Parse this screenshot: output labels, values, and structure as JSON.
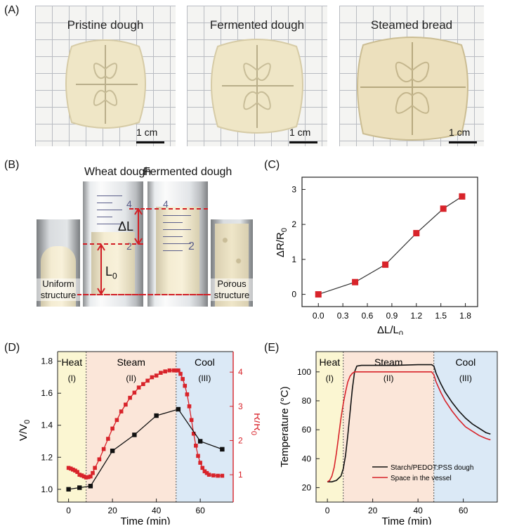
{
  "panelA": {
    "label": "(A)",
    "photos": [
      {
        "title": "Pristine dough",
        "scale": "1 cm"
      },
      {
        "title": "Fermented dough",
        "scale": "1 cm"
      },
      {
        "title": "Steamed bread",
        "scale": "1 cm"
      }
    ]
  },
  "panelB": {
    "label": "(B)",
    "wheat_title": "Wheat dough",
    "fermented_title": "Fermented dough",
    "uniform_line1": "Uniform",
    "uniform_line2": "structure",
    "porous_line1": "Porous",
    "porous_line2": "structure",
    "delta_l": "ΔL",
    "l0_base": "L",
    "l0_sub": "0",
    "mark_4": "4",
    "mark_2": "2"
  },
  "colors": {
    "accent_red": "#d8232a",
    "heat_bg": "#fbf6d2",
    "steam_bg": "#fbe6d9",
    "cool_bg": "#dbe9f6"
  },
  "chart_data": [
    {
      "id": "C",
      "label": "(C)",
      "type": "line",
      "series": [
        {
          "name": "ΔR/R0",
          "x": [
            0.0,
            0.45,
            0.82,
            1.2,
            1.53,
            1.76
          ],
          "y": [
            0.0,
            0.35,
            0.85,
            1.75,
            2.45,
            2.8
          ]
        }
      ],
      "xlabel_base": "ΔL/L",
      "xlabel_sub": "0",
      "ylabel_base": "ΔR/R",
      "ylabel_sub": "0",
      "xlim": [
        -0.2,
        1.95
      ],
      "ylim": [
        -0.35,
        3.35
      ],
      "xticks": [
        "0.0",
        "0.3",
        "0.6",
        "0.9",
        "1.2",
        "1.5",
        "1.8"
      ],
      "yticks": [
        "0",
        "1",
        "2",
        "3"
      ]
    },
    {
      "id": "D",
      "label": "(D)",
      "type": "line",
      "xlabel": "Time (min)",
      "ylabel_left_base": "V/V",
      "ylabel_left_sub": "0",
      "ylabel_right_base": "R/R",
      "ylabel_right_sub": "0",
      "xlim": [
        -5,
        75
      ],
      "ylim_left": [
        0.92,
        1.86
      ],
      "ylim_right": [
        0.2,
        4.6
      ],
      "xticks": [
        "0",
        "20",
        "40",
        "60"
      ],
      "yticks_left": [
        "1.0",
        "1.2",
        "1.4",
        "1.6",
        "1.8"
      ],
      "yticks_right": [
        "1",
        "2",
        "3",
        "4"
      ],
      "regions": [
        {
          "name": "Heat",
          "roman": "(I)",
          "start": -5,
          "end": 8
        },
        {
          "name": "Steam",
          "roman": "(II)",
          "start": 8,
          "end": 49
        },
        {
          "name": "Cool",
          "roman": "(III)",
          "start": 49,
          "end": 75
        }
      ],
      "series": [
        {
          "name": "V/V0",
          "axis": "left",
          "color": "#111111",
          "x": [
            0,
            5,
            10,
            20,
            30,
            40,
            50,
            60,
            70
          ],
          "y": [
            1.0,
            1.01,
            1.02,
            1.24,
            1.34,
            1.46,
            1.5,
            1.3,
            1.25
          ]
        },
        {
          "name": "R/R0",
          "axis": "right",
          "color": "#d8232a",
          "x": [
            0,
            1,
            2,
            3,
            4,
            5,
            6,
            7,
            8,
            9,
            10,
            11,
            12,
            14,
            16,
            18,
            20,
            22,
            24,
            26,
            28,
            30,
            32,
            34,
            36,
            38,
            40,
            42,
            44,
            46,
            48,
            49,
            50,
            51,
            52,
            53,
            54,
            55,
            56,
            57,
            58,
            59,
            60,
            61,
            62,
            63,
            64,
            66,
            68,
            70
          ],
          "y": [
            1.2,
            1.18,
            1.15,
            1.12,
            1.08,
            1.0,
            0.98,
            0.95,
            0.92,
            0.93,
            0.95,
            1.05,
            1.2,
            1.45,
            1.75,
            2.05,
            2.35,
            2.6,
            2.85,
            3.05,
            3.25,
            3.4,
            3.55,
            3.65,
            3.75,
            3.85,
            3.9,
            3.98,
            4.02,
            4.05,
            4.05,
            4.05,
            4.05,
            3.95,
            3.8,
            3.6,
            3.35,
            3.0,
            2.6,
            2.2,
            1.85,
            1.55,
            1.35,
            1.2,
            1.1,
            1.05,
            1.0,
            0.98,
            0.97,
            0.97
          ]
        }
      ]
    },
    {
      "id": "E",
      "label": "(E)",
      "type": "line",
      "xlabel": "Time (min)",
      "ylabel": "Temperature (°C)",
      "xlim": [
        -5,
        75
      ],
      "ylim": [
        10,
        114
      ],
      "xticks": [
        "0",
        "20",
        "40",
        "60"
      ],
      "yticks": [
        "20",
        "40",
        "60",
        "80",
        "100"
      ],
      "regions": [
        {
          "name": "Heat",
          "roman": "(I)",
          "start": -5,
          "end": 7
        },
        {
          "name": "Steam",
          "roman": "(II)",
          "start": 7,
          "end": 47
        },
        {
          "name": "Cool",
          "roman": "(III)",
          "start": 47,
          "end": 75
        }
      ],
      "legend_position": "bottom-right",
      "series": [
        {
          "name": "Starch/PEDOT:PSS dough",
          "color": "#111111",
          "x": [
            0,
            2,
            4,
            6,
            7,
            8,
            9,
            10,
            11,
            12,
            13,
            15,
            20,
            30,
            40,
            46,
            47,
            48,
            50,
            52,
            55,
            58,
            61,
            64,
            67,
            70,
            72
          ],
          "y": [
            24,
            24,
            25,
            28,
            33,
            42,
            56,
            72,
            88,
            100,
            104,
            104.5,
            104.5,
            104.5,
            105,
            105,
            104,
            99,
            92,
            86,
            79,
            73,
            68,
            64,
            61,
            58,
            57
          ]
        },
        {
          "name": "Space in the vessel",
          "color": "#d8232a",
          "x": [
            0,
            1,
            2,
            3,
            4,
            5,
            6,
            7,
            8,
            9,
            10,
            11,
            12,
            13,
            15,
            20,
            30,
            40,
            46,
            47,
            48,
            50,
            52,
            55,
            58,
            61,
            64,
            67,
            70,
            72
          ],
          "y": [
            24,
            25,
            28,
            34,
            44,
            56,
            68,
            78,
            86,
            93,
            97,
            99,
            100,
            100,
            100,
            100,
            100,
            100,
            100,
            98,
            93,
            86,
            80,
            73,
            67,
            62,
            59,
            56,
            54,
            53
          ]
        }
      ]
    }
  ]
}
